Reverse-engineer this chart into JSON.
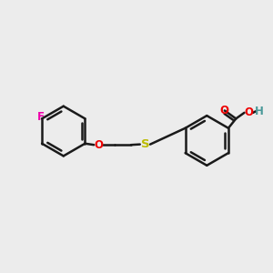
{
  "background_color": "#ececec",
  "bond_color": "#1a1a1a",
  "bond_width": 1.8,
  "F_color": "#ee00aa",
  "O_color": "#ee0000",
  "S_color": "#bbbb00",
  "H_color": "#4a9999",
  "figsize": [
    3.0,
    3.0
  ],
  "dpi": 100,
  "xlim": [
    0,
    10
  ],
  "ylim": [
    0,
    10
  ]
}
